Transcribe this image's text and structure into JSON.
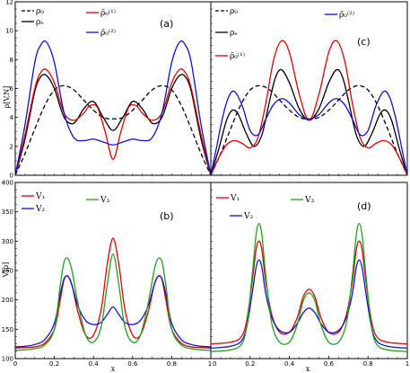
{
  "chart_data": [
    {
      "id": "a",
      "type": "line",
      "panel_label": "(a)",
      "ylabel": "ρ[V,N]",
      "xlabel": "",
      "xlim": [
        0,
        1
      ],
      "ylim": [
        0,
        12
      ],
      "x_ticks": [],
      "y_ticks": [
        "0",
        "2",
        "4",
        "6",
        "8",
        "10",
        "12"
      ],
      "grid": false,
      "legend": [
        {
          "label": "ρ₀",
          "color": "#000000",
          "dash": "dashed"
        },
        {
          "label": "ρₑ",
          "color": "#000000",
          "dash": "solid"
        },
        {
          "label": "ρ̃₀⁽¹⁾",
          "color": "#e00000",
          "dash": "solid"
        },
        {
          "label": "ρ̃₀⁽²⁾",
          "color": "#1010d0",
          "dash": "solid"
        }
      ],
      "series": [
        {
          "name": "ρ₀",
          "color": "#000000",
          "dash": "dashed",
          "x": [
            0,
            0.05,
            0.1,
            0.15,
            0.2,
            0.25,
            0.3,
            0.35,
            0.4,
            0.45,
            0.5,
            0.55,
            0.6,
            0.65,
            0.7,
            0.75,
            0.8,
            0.85,
            0.9,
            0.95,
            1
          ],
          "y": [
            0,
            1.5,
            3.2,
            4.8,
            5.9,
            6.2,
            5.9,
            5.2,
            4.5,
            4.0,
            3.9,
            4.0,
            4.5,
            5.2,
            5.9,
            6.2,
            5.9,
            4.8,
            3.2,
            1.5,
            0
          ]
        },
        {
          "name": "ρₑ",
          "color": "#000000",
          "dash": "solid",
          "x": [
            0,
            0.05,
            0.1,
            0.13,
            0.16,
            0.2,
            0.25,
            0.3,
            0.35,
            0.4,
            0.45,
            0.5,
            0.55,
            0.6,
            0.65,
            0.7,
            0.75,
            0.8,
            0.84,
            0.87,
            0.9,
            0.95,
            1
          ],
          "y": [
            0,
            2.5,
            5.8,
            6.8,
            6.9,
            6.0,
            4.0,
            3.6,
            4.6,
            5.1,
            4.0,
            3.1,
            4.0,
            5.1,
            4.6,
            3.6,
            4.0,
            6.0,
            6.9,
            6.8,
            5.8,
            2.5,
            0
          ]
        },
        {
          "name": "ρ̃₀⁽¹⁾",
          "color": "#e00000",
          "dash": "solid",
          "x": [
            0,
            0.05,
            0.1,
            0.13,
            0.16,
            0.2,
            0.25,
            0.3,
            0.35,
            0.38,
            0.42,
            0.46,
            0.5,
            0.54,
            0.58,
            0.62,
            0.65,
            0.7,
            0.75,
            0.8,
            0.84,
            0.87,
            0.9,
            0.95,
            1
          ],
          "y": [
            0,
            2.8,
            6.0,
            7.1,
            7.3,
            6.4,
            4.3,
            3.8,
            4.3,
            4.8,
            4.7,
            3.0,
            1.1,
            3.0,
            4.7,
            4.8,
            4.3,
            3.8,
            4.3,
            6.4,
            7.3,
            7.1,
            6.0,
            2.8,
            0
          ]
        },
        {
          "name": "ρ̃₀⁽²⁾",
          "color": "#1010d0",
          "dash": "solid",
          "x": [
            0,
            0.05,
            0.1,
            0.13,
            0.16,
            0.2,
            0.25,
            0.3,
            0.35,
            0.4,
            0.45,
            0.5,
            0.55,
            0.6,
            0.65,
            0.7,
            0.75,
            0.8,
            0.84,
            0.87,
            0.9,
            0.95,
            1
          ],
          "y": [
            0,
            3.5,
            7.8,
            9.0,
            9.2,
            7.8,
            4.3,
            2.6,
            2.4,
            2.5,
            2.3,
            2.1,
            2.3,
            2.5,
            2.4,
            2.6,
            4.3,
            7.8,
            9.2,
            9.0,
            7.8,
            3.5,
            0
          ]
        }
      ]
    },
    {
      "id": "c",
      "type": "line",
      "panel_label": "(c)",
      "ylabel": "",
      "xlabel": "",
      "xlim": [
        0,
        1
      ],
      "ylim": [
        0,
        12
      ],
      "x_ticks": [],
      "y_ticks": [],
      "grid": false,
      "legend": [
        {
          "label": "ρ₀",
          "color": "#000000",
          "dash": "dashed"
        },
        {
          "label": "ρₑ",
          "color": "#000000",
          "dash": "solid"
        },
        {
          "label": "ρ̃₀⁽¹⁾",
          "color": "#e00000",
          "dash": "solid"
        },
        {
          "label": "ρ̃₀⁽²⁾",
          "color": "#1010d0",
          "dash": "solid"
        }
      ],
      "series": [
        {
          "name": "ρ₀",
          "color": "#000000",
          "dash": "dashed",
          "x": [
            0,
            0.05,
            0.1,
            0.15,
            0.2,
            0.25,
            0.3,
            0.35,
            0.4,
            0.45,
            0.5,
            0.55,
            0.6,
            0.65,
            0.7,
            0.75,
            0.8,
            0.85,
            0.9,
            0.95,
            1
          ],
          "y": [
            0,
            1.5,
            3.2,
            4.8,
            5.9,
            6.2,
            5.9,
            5.2,
            4.5,
            4.0,
            3.9,
            4.0,
            4.5,
            5.2,
            5.9,
            6.2,
            5.9,
            4.8,
            3.2,
            1.5,
            0
          ]
        },
        {
          "name": "ρₑ",
          "color": "#000000",
          "dash": "solid",
          "x": [
            0,
            0.04,
            0.08,
            0.11,
            0.14,
            0.18,
            0.22,
            0.26,
            0.3,
            0.33,
            0.36,
            0.4,
            0.45,
            0.5,
            0.55,
            0.6,
            0.64,
            0.67,
            0.7,
            0.74,
            0.78,
            0.82,
            0.86,
            0.89,
            0.92,
            0.96,
            1
          ],
          "y": [
            0,
            1.8,
            3.8,
            4.5,
            4.2,
            2.9,
            2.0,
            2.8,
            5.2,
            6.8,
            7.3,
            6.4,
            4.6,
            3.8,
            4.6,
            6.4,
            7.3,
            6.8,
            5.2,
            2.8,
            2.0,
            2.9,
            4.2,
            4.5,
            3.8,
            1.8,
            0
          ]
        },
        {
          "name": "ρ̃₀⁽¹⁾",
          "color": "#e00000",
          "dash": "solid",
          "x": [
            0,
            0.04,
            0.08,
            0.12,
            0.16,
            0.2,
            0.24,
            0.28,
            0.32,
            0.36,
            0.4,
            0.45,
            0.5,
            0.55,
            0.6,
            0.64,
            0.68,
            0.72,
            0.76,
            0.8,
            0.84,
            0.88,
            0.92,
            0.96,
            1
          ],
          "y": [
            0,
            1.2,
            2.1,
            2.4,
            2.2,
            1.9,
            2.6,
            5.0,
            8.0,
            9.3,
            8.5,
            5.6,
            3.8,
            5.6,
            8.5,
            9.3,
            8.0,
            5.0,
            2.6,
            1.9,
            2.2,
            2.4,
            2.1,
            1.2,
            0
          ]
        },
        {
          "name": "ρ̃₀⁽²⁾",
          "color": "#1010d0",
          "dash": "solid",
          "x": [
            0,
            0.03,
            0.06,
            0.09,
            0.12,
            0.16,
            0.2,
            0.24,
            0.28,
            0.32,
            0.36,
            0.4,
            0.45,
            0.5,
            0.55,
            0.6,
            0.64,
            0.68,
            0.72,
            0.76,
            0.8,
            0.84,
            0.88,
            0.91,
            0.94,
            0.97,
            1
          ],
          "y": [
            0,
            2.0,
            4.0,
            5.4,
            5.8,
            4.8,
            3.1,
            2.8,
            3.9,
            4.9,
            5.3,
            5.0,
            4.2,
            3.9,
            4.2,
            5.0,
            5.3,
            4.9,
            3.9,
            2.8,
            3.1,
            4.8,
            5.8,
            5.4,
            4.0,
            2.0,
            0
          ]
        }
      ]
    },
    {
      "id": "b",
      "type": "line",
      "panel_label": "(b)",
      "ylabel": "V[ρ]",
      "xlabel": "x",
      "xlim": [
        0,
        1
      ],
      "ylim": [
        100,
        400
      ],
      "x_ticks": [
        "0",
        "0.2",
        "0.4",
        "0.6",
        "0.8",
        "1"
      ],
      "y_ticks": [
        "100",
        "150",
        "200",
        "250",
        "300",
        "350",
        "400"
      ],
      "grid": false,
      "legend": [
        {
          "label": "V₁",
          "color": "#e00000"
        },
        {
          "label": "V₂",
          "color": "#1010d0"
        },
        {
          "label": "V₃",
          "color": "#20a020"
        }
      ],
      "series": [
        {
          "name": "V₁",
          "color": "#e00000",
          "dash": "solid",
          "x": [
            0,
            0.05,
            0.1,
            0.15,
            0.2,
            0.23,
            0.25,
            0.27,
            0.29,
            0.32,
            0.36,
            0.4,
            0.44,
            0.47,
            0.5,
            0.53,
            0.56,
            0.6,
            0.64,
            0.68,
            0.71,
            0.73,
            0.75,
            0.77,
            0.8,
            0.85,
            0.9,
            0.95,
            1
          ],
          "y": [
            118,
            119,
            120,
            126,
            150,
            200,
            235,
            240,
            225,
            180,
            140,
            140,
            185,
            260,
            305,
            260,
            185,
            140,
            140,
            180,
            225,
            240,
            235,
            200,
            150,
            126,
            120,
            119,
            118
          ]
        },
        {
          "name": "V₂",
          "color": "#1010d0",
          "dash": "solid",
          "x": [
            0,
            0.05,
            0.1,
            0.15,
            0.2,
            0.23,
            0.25,
            0.27,
            0.29,
            0.32,
            0.36,
            0.4,
            0.44,
            0.47,
            0.5,
            0.53,
            0.56,
            0.6,
            0.64,
            0.68,
            0.71,
            0.73,
            0.75,
            0.77,
            0.8,
            0.85,
            0.9,
            0.95,
            1
          ],
          "y": [
            120,
            121,
            124,
            132,
            160,
            210,
            236,
            240,
            225,
            190,
            165,
            158,
            162,
            175,
            188,
            175,
            162,
            158,
            165,
            190,
            225,
            240,
            236,
            210,
            160,
            132,
            124,
            121,
            120
          ]
        },
        {
          "name": "V₃",
          "color": "#20a020",
          "dash": "solid",
          "x": [
            0,
            0.05,
            0.1,
            0.15,
            0.2,
            0.23,
            0.25,
            0.27,
            0.29,
            0.32,
            0.36,
            0.4,
            0.44,
            0.47,
            0.5,
            0.53,
            0.56,
            0.6,
            0.64,
            0.68,
            0.71,
            0.73,
            0.75,
            0.77,
            0.8,
            0.85,
            0.9,
            0.95,
            1
          ],
          "y": [
            114,
            115,
            117,
            123,
            150,
            225,
            265,
            270,
            250,
            195,
            140,
            128,
            155,
            225,
            278,
            225,
            155,
            128,
            140,
            195,
            250,
            270,
            265,
            225,
            150,
            123,
            117,
            115,
            114
          ]
        }
      ]
    },
    {
      "id": "d",
      "type": "line",
      "panel_label": "(d)",
      "ylabel": "",
      "xlabel": "x",
      "xlim": [
        0,
        1
      ],
      "ylim": [
        100,
        400
      ],
      "x_ticks": [
        "0",
        "0.2",
        "0.4",
        "0.6",
        "0.8",
        "1"
      ],
      "y_ticks": [],
      "grid": false,
      "legend": [
        {
          "label": "V₁",
          "color": "#e00000"
        },
        {
          "label": "V₂",
          "color": "#1010d0"
        },
        {
          "label": "V₃",
          "color": "#20a020"
        }
      ],
      "series": [
        {
          "name": "V₁",
          "color": "#e00000",
          "dash": "solid",
          "x": [
            0,
            0.05,
            0.1,
            0.15,
            0.18,
            0.21,
            0.23,
            0.245,
            0.26,
            0.28,
            0.31,
            0.35,
            0.4,
            0.44,
            0.47,
            0.5,
            0.53,
            0.56,
            0.6,
            0.65,
            0.69,
            0.72,
            0.74,
            0.755,
            0.77,
            0.79,
            0.82,
            0.85,
            0.9,
            0.95,
            1
          ],
          "y": [
            125,
            126,
            128,
            135,
            160,
            230,
            285,
            300,
            285,
            230,
            175,
            145,
            145,
            170,
            205,
            218,
            205,
            170,
            145,
            145,
            175,
            230,
            285,
            300,
            285,
            230,
            160,
            135,
            128,
            126,
            125
          ]
        },
        {
          "name": "V₂",
          "color": "#1010d0",
          "dash": "solid",
          "x": [
            0,
            0.05,
            0.1,
            0.15,
            0.18,
            0.21,
            0.23,
            0.245,
            0.26,
            0.28,
            0.31,
            0.35,
            0.4,
            0.44,
            0.47,
            0.5,
            0.53,
            0.56,
            0.6,
            0.65,
            0.69,
            0.72,
            0.74,
            0.755,
            0.77,
            0.79,
            0.82,
            0.85,
            0.9,
            0.95,
            1
          ],
          "y": [
            118,
            119,
            121,
            128,
            150,
            210,
            255,
            268,
            255,
            210,
            170,
            148,
            145,
            160,
            178,
            186,
            178,
            160,
            145,
            148,
            170,
            210,
            255,
            268,
            255,
            210,
            150,
            128,
            121,
            119,
            118
          ]
        },
        {
          "name": "V₃",
          "color": "#20a020",
          "dash": "solid",
          "x": [
            0,
            0.05,
            0.1,
            0.15,
            0.18,
            0.21,
            0.23,
            0.245,
            0.26,
            0.28,
            0.31,
            0.35,
            0.4,
            0.44,
            0.47,
            0.5,
            0.53,
            0.56,
            0.6,
            0.65,
            0.69,
            0.72,
            0.74,
            0.755,
            0.77,
            0.79,
            0.82,
            0.85,
            0.9,
            0.95,
            1
          ],
          "y": [
            112,
            113,
            115,
            122,
            150,
            240,
            310,
            330,
            310,
            240,
            160,
            128,
            128,
            158,
            198,
            212,
            198,
            158,
            128,
            128,
            160,
            240,
            310,
            330,
            310,
            240,
            150,
            122,
            115,
            113,
            112
          ]
        }
      ]
    }
  ]
}
